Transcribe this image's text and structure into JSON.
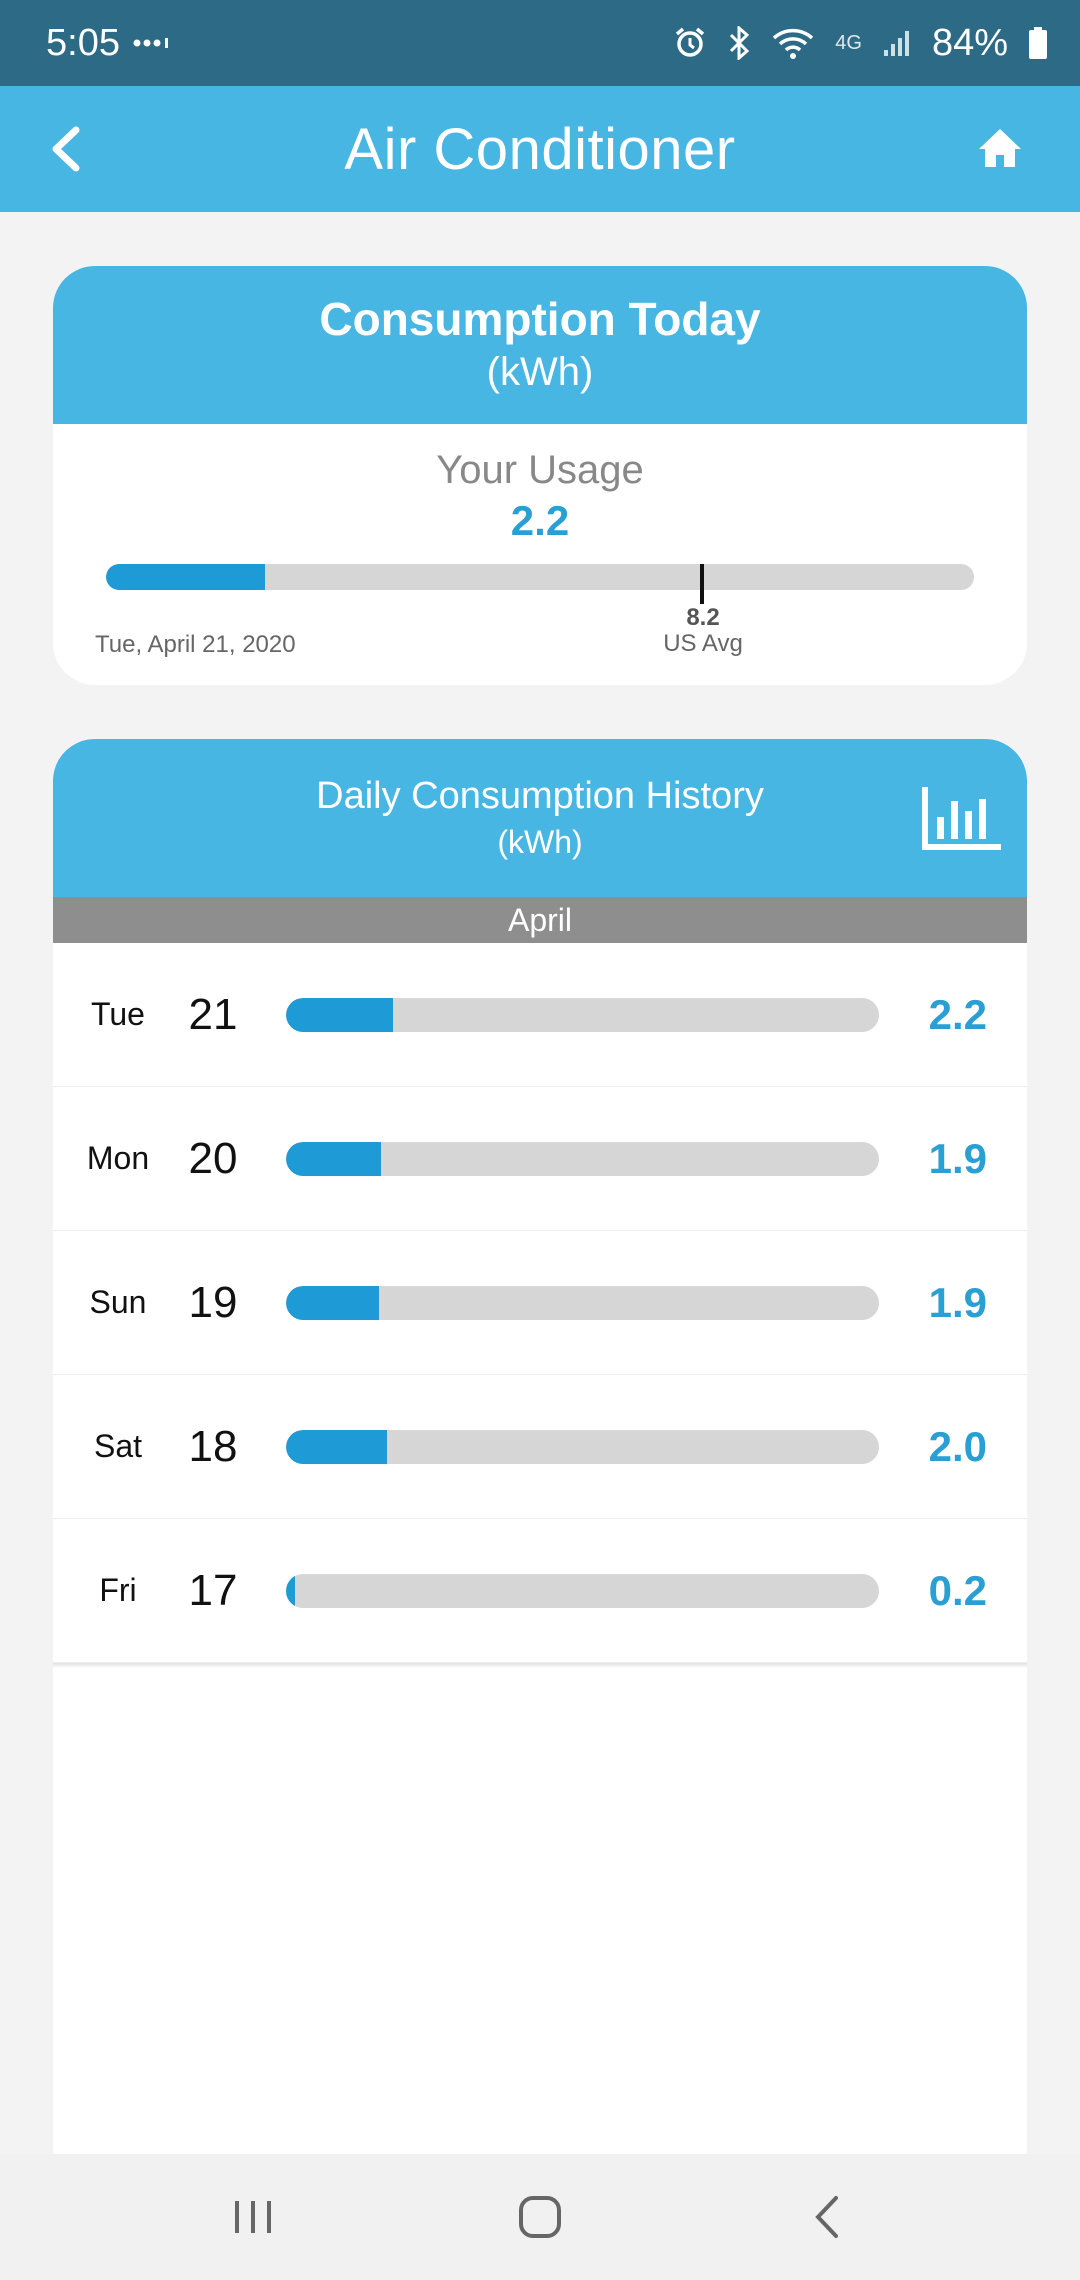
{
  "status_bar": {
    "time": "5:05",
    "network": "4G",
    "battery": "84%"
  },
  "app_bar": {
    "title": "Air Conditioner"
  },
  "today": {
    "title": "Consumption Today",
    "unit": "(kWh)",
    "usage_label": "Your Usage",
    "usage_value": "2.2",
    "usage_fraction": 0.183,
    "avg_value": "8.2",
    "avg_label": "US Avg",
    "date": "Tue, April 21, 2020"
  },
  "history": {
    "title": "Daily Consumption History",
    "unit": "(kWh)",
    "month": "April",
    "rows": [
      {
        "dow": "Tue",
        "day": "21",
        "value": "2.2",
        "fraction": 0.18
      },
      {
        "dow": "Mon",
        "day": "20",
        "value": "1.9",
        "fraction": 0.16
      },
      {
        "dow": "Sun",
        "day": "19",
        "value": "1.9",
        "fraction": 0.157
      },
      {
        "dow": "Sat",
        "day": "18",
        "value": "2.0",
        "fraction": 0.17
      },
      {
        "dow": "Fri",
        "day": "17",
        "value": "0.2",
        "fraction": 0.015
      }
    ]
  },
  "colors": {
    "status_bar": "#2c6a85",
    "accent": "#47b6e2",
    "bar_fill": "#1e9ad6",
    "bar_track": "#d6d6d6",
    "value_text": "#2a9fd3"
  },
  "icons": {
    "back": "back-chevron-icon",
    "home": "home-icon",
    "chart": "bar-chart-icon"
  }
}
